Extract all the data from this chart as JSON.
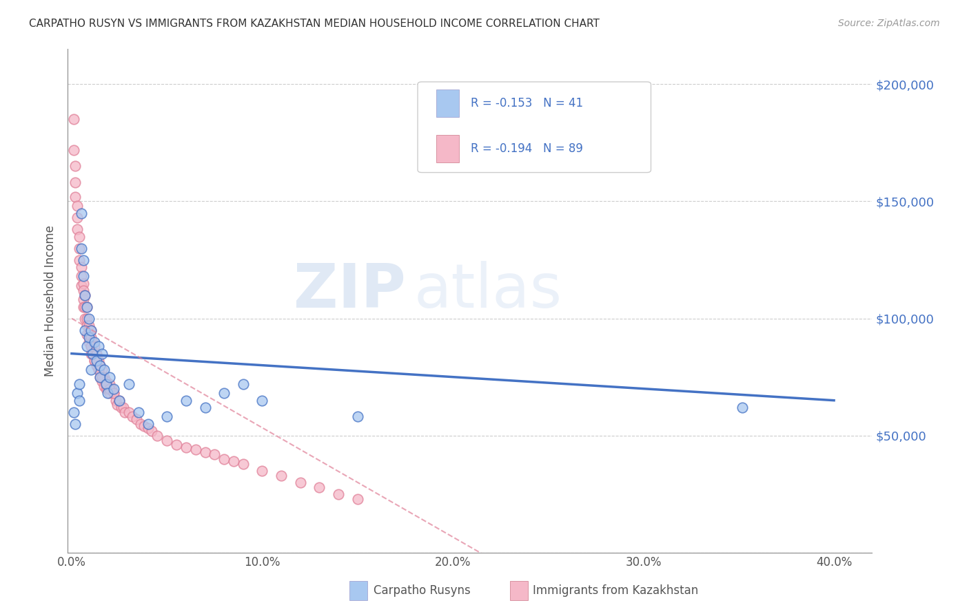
{
  "title": "CARPATHO RUSYN VS IMMIGRANTS FROM KAZAKHSTAN MEDIAN HOUSEHOLD INCOME CORRELATION CHART",
  "source": "Source: ZipAtlas.com",
  "xlabel_ticks": [
    "0.0%",
    "10.0%",
    "20.0%",
    "30.0%",
    "40.0%"
  ],
  "xlabel_tick_vals": [
    0.0,
    0.1,
    0.2,
    0.3,
    0.4
  ],
  "ylabel": "Median Household Income",
  "ylabel_ticks": [
    0,
    50000,
    100000,
    150000,
    200000
  ],
  "ylabel_tick_labels": [
    "",
    "$50,000",
    "$100,000",
    "$150,000",
    "$200,000"
  ],
  "xlim": [
    -0.002,
    0.42
  ],
  "ylim": [
    0,
    215000
  ],
  "legend1_label": "R = -0.153   N = 41",
  "legend2_label": "R = -0.194   N = 89",
  "legend_bottom_label1": "Carpatho Rusyns",
  "legend_bottom_label2": "Immigrants from Kazakhstan",
  "blue_color": "#A8C8F0",
  "pink_color": "#F5B8C8",
  "trend_blue": "#4472C4",
  "trend_pink": "#E08098",
  "watermark_zip": "ZIP",
  "watermark_atlas": "atlas",
  "blue_scatter_x": [
    0.001,
    0.002,
    0.003,
    0.004,
    0.004,
    0.005,
    0.005,
    0.006,
    0.006,
    0.007,
    0.007,
    0.008,
    0.008,
    0.009,
    0.009,
    0.01,
    0.01,
    0.011,
    0.012,
    0.013,
    0.014,
    0.015,
    0.015,
    0.016,
    0.017,
    0.018,
    0.019,
    0.02,
    0.022,
    0.025,
    0.03,
    0.035,
    0.04,
    0.05,
    0.06,
    0.07,
    0.08,
    0.09,
    0.1,
    0.15,
    0.352
  ],
  "blue_scatter_y": [
    60000,
    55000,
    68000,
    72000,
    65000,
    130000,
    145000,
    118000,
    125000,
    110000,
    95000,
    105000,
    88000,
    100000,
    92000,
    95000,
    78000,
    85000,
    90000,
    82000,
    88000,
    80000,
    75000,
    85000,
    78000,
    72000,
    68000,
    75000,
    70000,
    65000,
    72000,
    60000,
    55000,
    58000,
    65000,
    62000,
    68000,
    72000,
    65000,
    58000,
    62000
  ],
  "pink_scatter_x": [
    0.001,
    0.001,
    0.002,
    0.002,
    0.002,
    0.003,
    0.003,
    0.003,
    0.004,
    0.004,
    0.004,
    0.005,
    0.005,
    0.005,
    0.006,
    0.006,
    0.006,
    0.006,
    0.007,
    0.007,
    0.007,
    0.008,
    0.008,
    0.008,
    0.008,
    0.009,
    0.009,
    0.009,
    0.01,
    0.01,
    0.01,
    0.01,
    0.011,
    0.011,
    0.012,
    0.012,
    0.013,
    0.013,
    0.014,
    0.014,
    0.015,
    0.015,
    0.016,
    0.016,
    0.017,
    0.017,
    0.018,
    0.018,
    0.019,
    0.02,
    0.02,
    0.021,
    0.022,
    0.023,
    0.024,
    0.025,
    0.026,
    0.027,
    0.028,
    0.03,
    0.032,
    0.034,
    0.036,
    0.038,
    0.04,
    0.042,
    0.045,
    0.05,
    0.055,
    0.06,
    0.065,
    0.07,
    0.075,
    0.08,
    0.085,
    0.09,
    0.1,
    0.11,
    0.12,
    0.13,
    0.14,
    0.15,
    0.01,
    0.012,
    0.014,
    0.016,
    0.018,
    0.02,
    0.022
  ],
  "pink_scatter_y": [
    185000,
    172000,
    165000,
    158000,
    152000,
    148000,
    143000,
    138000,
    135000,
    130000,
    125000,
    122000,
    118000,
    114000,
    115000,
    112000,
    108000,
    105000,
    110000,
    105000,
    100000,
    105000,
    100000,
    97000,
    93000,
    97000,
    93000,
    90000,
    95000,
    92000,
    88000,
    85000,
    90000,
    85000,
    88000,
    82000,
    85000,
    80000,
    82000,
    78000,
    80000,
    75000,
    78000,
    73000,
    75000,
    71000,
    73000,
    70000,
    70000,
    72000,
    68000,
    70000,
    68000,
    65000,
    63000,
    65000,
    62000,
    62000,
    60000,
    60000,
    58000,
    57000,
    55000,
    54000,
    53000,
    52000,
    50000,
    48000,
    46000,
    45000,
    44000,
    43000,
    42000,
    40000,
    39000,
    38000,
    35000,
    33000,
    30000,
    28000,
    25000,
    23000,
    88000,
    82000,
    78000,
    75000,
    72000,
    70000,
    68000
  ]
}
